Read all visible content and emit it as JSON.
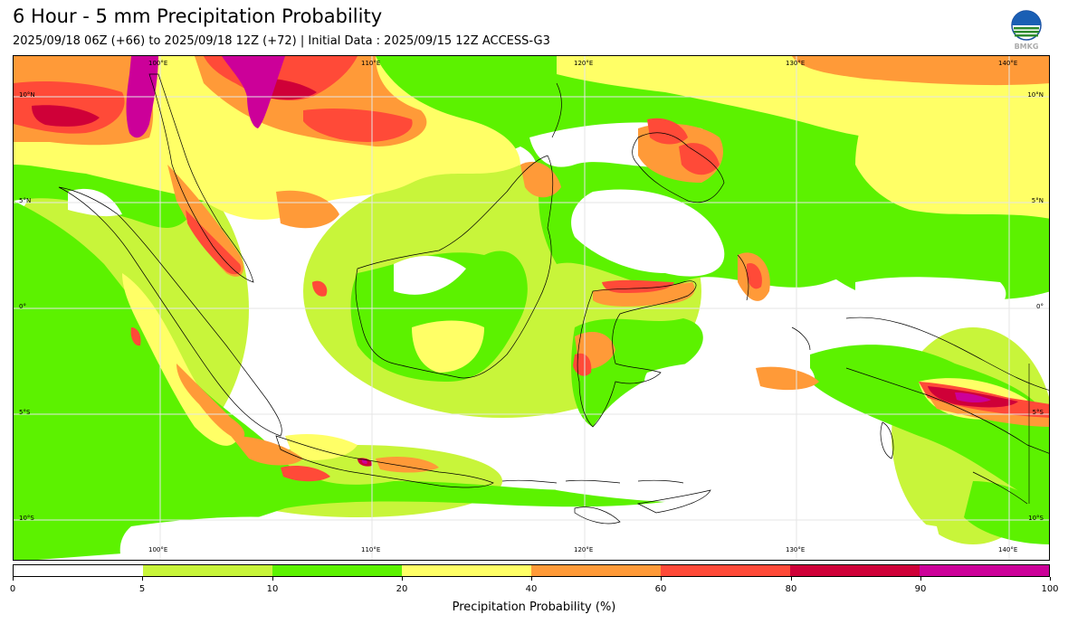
{
  "header": {
    "title": "6 Hour - 5 mm Precipitation Probability",
    "subtitle": "2025/09/18 06Z (+66) to 2025/09/18 12Z (+72) | Initial Data : 2025/09/15 12Z ACCESS-G3",
    "logo_text": "BMKG"
  },
  "map": {
    "lon_labels": [
      "100°E",
      "110°E",
      "120°E",
      "130°E",
      "140°E"
    ],
    "lat_labels": [
      "10°N",
      "5°N",
      "0°",
      "5°S",
      "10°S"
    ],
    "colors": {
      "c0_5": "#ffffff",
      "c5_10": "#c8f53a",
      "c10_20": "#5cf200",
      "c20_40": "#ffff66",
      "c40_60": "#ff9a38",
      "c60_80": "#ff4a38",
      "c80_90": "#cf0038",
      "c90_100": "#cc0099",
      "coastline": "#000000",
      "grid": "#e6e6e6"
    }
  },
  "colorbar": {
    "ticks": [
      "0",
      "5",
      "10",
      "20",
      "40",
      "60",
      "80",
      "90",
      "100"
    ],
    "colors": [
      "#ffffff",
      "#c8f53a",
      "#5cf200",
      "#ffff66",
      "#ff9a38",
      "#ff4a38",
      "#cf0038",
      "#cc0099"
    ],
    "label": "Precipitation Probability (%)"
  }
}
